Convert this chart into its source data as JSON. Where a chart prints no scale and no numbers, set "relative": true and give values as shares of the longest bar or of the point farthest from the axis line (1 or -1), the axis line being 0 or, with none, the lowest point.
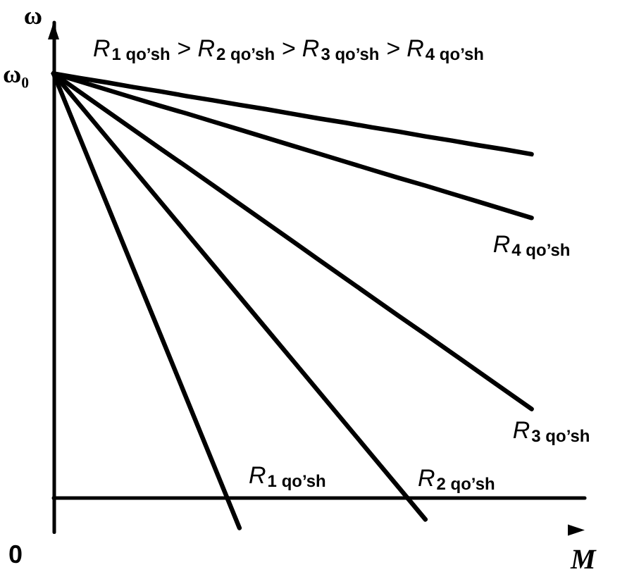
{
  "chart_data": {
    "type": "line",
    "relative": true,
    "xlabel": "M",
    "ylabel": "ω",
    "grid": false,
    "legend": false,
    "marker": "none",
    "line_style": "solid",
    "annotations": [
      "R$_{1 qo’sh}$ > R$_{2 qo’sh}$ > R$_{3 qo’sh}$ > R$_{4 qo’sh}$",
      "ω₀",
      "0"
    ],
    "categories": [
      null,
      null,
      null,
      null,
      null,
      null,
      null,
      null,
      null,
      null,
      null,
      null,
      null,
      null,
      null,
      null,
      null,
      null,
      null,
      null,
      null
    ],
    "series": [
      {
        "color": "#000000",
        "values": [
          1,
          0.989,
          0.979,
          0.968,
          0.958,
          0.947,
          0.937,
          0.926,
          0.916,
          0.905,
          0.894,
          0.884,
          0.873,
          0.863,
          0.852,
          0.842,
          0.831,
          0.821,
          0.81,
          null,
          null
        ]
      },
      {
        "name": "R$_{4 qo’sh}$",
        "color": "#000000",
        "values": [
          1,
          0.981,
          0.962,
          0.943,
          0.924,
          0.906,
          0.887,
          0.868,
          0.849,
          0.83,
          0.811,
          0.792,
          0.773,
          0.754,
          0.736,
          0.717,
          0.698,
          0.679,
          0.66,
          null,
          null
        ]
      },
      {
        "name": "R$_{3 qo’sh}$",
        "color": "#000000",
        "values": [
          1,
          0.956,
          0.912,
          0.868,
          0.824,
          0.781,
          0.737,
          0.693,
          0.649,
          0.605,
          0.561,
          0.517,
          0.473,
          0.429,
          0.386,
          0.342,
          0.298,
          0.254,
          0.21,
          null,
          null
        ]
      },
      {
        "name": "R$_{2 qo’sh}$",
        "color": "#000000",
        "values": [
          1,
          0.925,
          0.85,
          0.775,
          0.7,
          0.625,
          0.55,
          0.475,
          0.4,
          0.325,
          0.25,
          0.175,
          0.1,
          0.025,
          -0.05,
          null,
          null,
          null,
          null,
          null,
          null
        ]
      },
      {
        "name": "R$_{1 qo’sh}$",
        "color": "#000000",
        "values": [
          1,
          0.847,
          0.694,
          0.541,
          0.389,
          0.236,
          0.083,
          -0.07,
          null,
          null,
          null,
          null,
          null,
          null,
          null,
          null,
          null,
          null,
          null,
          null,
          null
        ]
      }
    ]
  }
}
